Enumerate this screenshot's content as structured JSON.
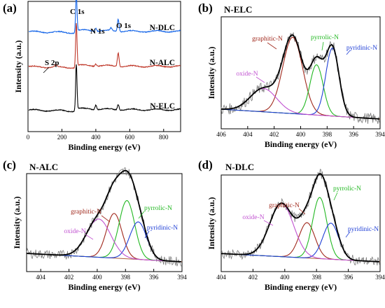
{
  "colors": {
    "N-DLC": "#1565e8",
    "N-ALC": "#c0392b",
    "N-ELC": "#000000",
    "graphitic-N": "#a0281c",
    "pyrrolic-N": "#22b822",
    "pyridinic-N": "#1f3fd6",
    "oxide-N": "#c050d0",
    "raw": "#7a7a7a",
    "baseline": "#b05a3a",
    "fit": "#000000"
  },
  "chart_data": [
    {
      "panel": "(a)",
      "type": "line",
      "xlabel": "Binding energy (eV)",
      "ylabel": "Intensity (a.u.)",
      "xlim": [
        0,
        900
      ],
      "xticks": [
        0,
        200,
        400,
        600,
        800
      ],
      "y_ticks_shown": false,
      "series": [
        {
          "name": "N-DLC",
          "offset": 2.0,
          "peaks": [
            {
              "x": 284.8,
              "h": 1.0,
              "w": 4
            },
            {
              "x": 400,
              "h": 0.08,
              "w": 5
            },
            {
              "x": 532,
              "h": 0.32,
              "w": 5
            },
            {
              "x": 490,
              "h": 0.07,
              "w": 6
            }
          ]
        },
        {
          "name": "N-ALC",
          "offset": 1.05,
          "peaks": [
            {
              "x": 284.8,
              "h": 1.15,
              "w": 4
            },
            {
              "x": 165,
              "h": 0.06,
              "w": 6
            },
            {
              "x": 400,
              "h": 0.06,
              "w": 5
            },
            {
              "x": 532,
              "h": 0.36,
              "w": 5
            }
          ]
        },
        {
          "name": "N-ELC",
          "offset": 0.0,
          "peaks": [
            {
              "x": 284.8,
              "h": 1.2,
              "w": 4
            },
            {
              "x": 400,
              "h": 0.12,
              "w": 5
            },
            {
              "x": 532,
              "h": 0.15,
              "w": 5
            }
          ]
        }
      ],
      "annotations": [
        "C 1s",
        "N 1s",
        "O 1s",
        "S 2p"
      ]
    },
    {
      "panel": "(b)",
      "title": "N-ELC",
      "type": "line",
      "xlabel": "Binding energy (eV)",
      "ylabel": "Intensity (a.u.)",
      "xlim": [
        406,
        394
      ],
      "xticks": [
        406,
        404,
        402,
        400,
        398,
        396,
        394
      ],
      "components": [
        {
          "name": "graphitic-N",
          "center": 400.6,
          "height": 0.82,
          "sigma": 0.75
        },
        {
          "name": "pyrrolic-N",
          "center": 398.8,
          "height": 0.54,
          "sigma": 0.5
        },
        {
          "name": "pyridinic-N",
          "center": 397.6,
          "height": 0.73,
          "sigma": 0.5
        },
        {
          "name": "oxide-N",
          "center": 402.8,
          "height": 0.25,
          "sigma": 1.0
        }
      ]
    },
    {
      "panel": "(c)",
      "title": "N-ALC",
      "type": "line",
      "xlabel": "Binding energy (eV)",
      "ylabel": "Intensity (a.u.)",
      "xlim": [
        405,
        394
      ],
      "xticks": [
        404,
        402,
        400,
        398,
        396,
        394
      ],
      "components": [
        {
          "name": "graphitic-N",
          "center": 398.8,
          "height": 0.56,
          "sigma": 0.55
        },
        {
          "name": "pyrrolic-N",
          "center": 397.9,
          "height": 0.73,
          "sigma": 0.55
        },
        {
          "name": "pyridinic-N",
          "center": 397.1,
          "height": 0.47,
          "sigma": 0.6
        },
        {
          "name": "oxide-N",
          "center": 399.9,
          "height": 0.48,
          "sigma": 0.85
        }
      ]
    },
    {
      "panel": "(d)",
      "title": "N-DLC",
      "type": "line",
      "xlabel": "Binding energy (eV)",
      "ylabel": "Intensity (a.u.)",
      "xlim": [
        404,
        394
      ],
      "xticks": [
        404,
        402,
        400,
        398,
        396,
        394
      ],
      "components": [
        {
          "name": "graphitic-N",
          "center": 398.6,
          "height": 0.45,
          "sigma": 0.5
        },
        {
          "name": "pyrrolic-N",
          "center": 397.8,
          "height": 0.78,
          "sigma": 0.45
        },
        {
          "name": "pyridinic-N",
          "center": 397.1,
          "height": 0.46,
          "sigma": 0.5
        },
        {
          "name": "oxide-N",
          "center": 400.2,
          "height": 0.68,
          "sigma": 0.75
        }
      ]
    }
  ]
}
